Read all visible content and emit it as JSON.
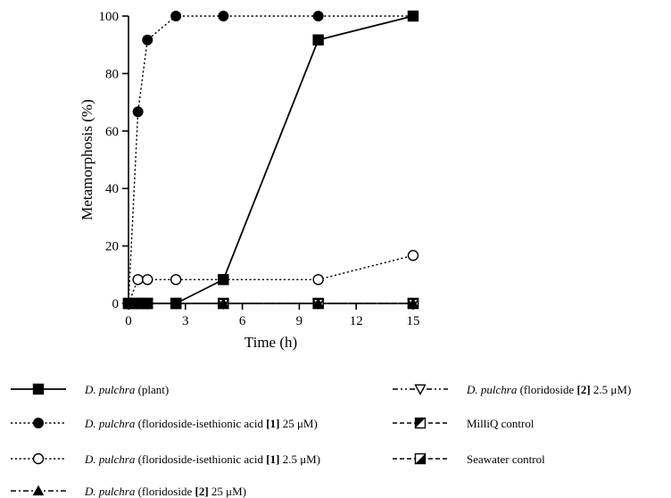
{
  "chart_data": {
    "type": "line",
    "xlabel": "Time  (h)",
    "ylabel": "Metamorphosis (%)",
    "xlim": [
      0,
      15
    ],
    "ylim": [
      0,
      100
    ],
    "xticks": [
      0,
      3,
      6,
      9,
      12,
      15
    ],
    "yticks": [
      0,
      20,
      40,
      60,
      80,
      100
    ],
    "grid": false,
    "legend_position": "bottom",
    "series": [
      {
        "key": "plant",
        "legend": {
          "species": "D. pulchra",
          "desc": " (plant)"
        },
        "marker": "square-filled",
        "line": "solid",
        "points": [
          [
            0,
            0
          ],
          [
            0.25,
            0
          ],
          [
            0.5,
            0
          ],
          [
            0.75,
            0
          ],
          [
            1,
            0
          ],
          [
            2.5,
            0
          ],
          [
            5,
            8.3
          ],
          [
            10,
            91.7
          ],
          [
            15,
            100
          ]
        ]
      },
      {
        "key": "fia25",
        "legend": {
          "species": "D. pulchra",
          "desc": " (floridoside-isethionic acid ",
          "bold": "[1]",
          "tail": " 25 μM)"
        },
        "marker": "circle-filled",
        "line": "dotted",
        "points": [
          [
            0,
            0
          ],
          [
            0.5,
            66.7
          ],
          [
            1,
            91.7
          ],
          [
            2.5,
            100
          ],
          [
            5,
            100
          ],
          [
            10,
            100
          ],
          [
            15,
            100
          ]
        ]
      },
      {
        "key": "fia2_5",
        "legend": {
          "species": "D. pulchra",
          "desc": " (floridoside-isethionic acid ",
          "bold": "[1]",
          "tail": " 2.5 μM)"
        },
        "marker": "circle-open",
        "line": "dotted",
        "points": [
          [
            0,
            0
          ],
          [
            0.5,
            8.3
          ],
          [
            1,
            8.3
          ],
          [
            2.5,
            8.3
          ],
          [
            5,
            8.3
          ],
          [
            10,
            8.3
          ],
          [
            15,
            16.7
          ]
        ]
      },
      {
        "key": "flor25",
        "legend": {
          "species": "D. pulchra",
          "desc": " (floridoside ",
          "bold": "[2]",
          "tail": " 25 μM)"
        },
        "marker": "triangle-up-filled",
        "line": "dashdot",
        "points": [
          [
            0,
            0
          ],
          [
            0.5,
            0
          ],
          [
            1,
            0
          ],
          [
            2.5,
            0
          ],
          [
            5,
            0
          ],
          [
            10,
            0
          ],
          [
            15,
            0
          ]
        ]
      },
      {
        "key": "flor2_5",
        "legend": {
          "species": "D. pulchra",
          "desc": " (floridoside ",
          "bold": "[2]",
          "tail": " 2.5 μM)"
        },
        "marker": "triangle-down-open",
        "line": "dashdotdot",
        "points": [
          [
            0,
            0
          ],
          [
            0.5,
            0
          ],
          [
            1,
            0
          ],
          [
            2.5,
            0
          ],
          [
            5,
            0
          ],
          [
            10,
            0
          ],
          [
            15,
            0
          ]
        ]
      },
      {
        "key": "milliq",
        "legend": {
          "species": "",
          "desc": "MilliQ control"
        },
        "marker": "square-half",
        "line": "dashed",
        "points": [
          [
            0,
            0
          ],
          [
            0.5,
            0
          ],
          [
            1,
            0
          ],
          [
            2.5,
            0
          ],
          [
            5,
            0
          ],
          [
            10,
            0
          ],
          [
            15,
            0
          ]
        ]
      },
      {
        "key": "seawater",
        "legend": {
          "species": "",
          "desc": "Seawater control"
        },
        "marker": "square-half-diag",
        "line": "dashed",
        "points": [
          [
            0,
            0
          ],
          [
            0.5,
            0
          ],
          [
            1,
            0
          ],
          [
            2.5,
            0
          ],
          [
            5,
            0
          ],
          [
            10,
            0
          ],
          [
            15,
            0
          ]
        ]
      }
    ]
  }
}
